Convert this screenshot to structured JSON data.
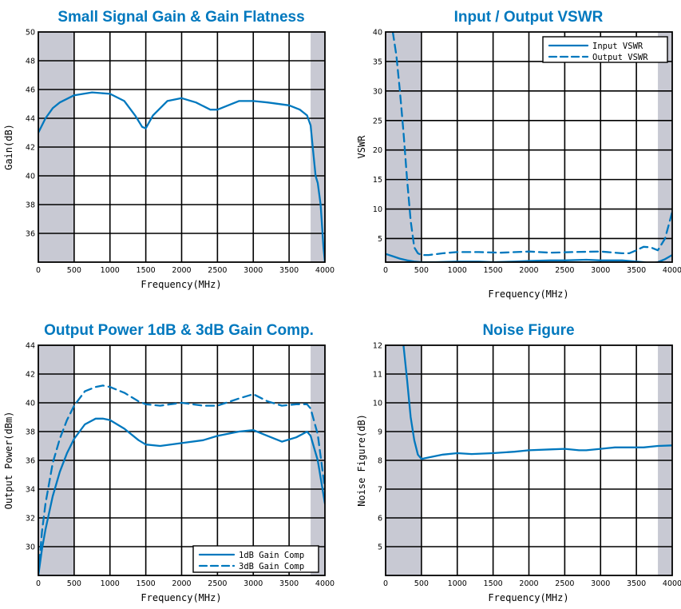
{
  "colors": {
    "series": "#0078be",
    "shade": "#c8c9d3",
    "title": "#0078be"
  },
  "chart_data": [
    {
      "id": "gain",
      "type": "line",
      "title": "Small Signal Gain & Gain Flatness",
      "xlabel": "Frequency(MHz)",
      "ylabel": "Gain(dB)",
      "xlim": [
        0,
        4000
      ],
      "ylim": [
        34,
        50
      ],
      "xticks": [
        0,
        500,
        1000,
        1500,
        2000,
        2500,
        3000,
        3500,
        4000
      ],
      "yticks": [
        36,
        38,
        40,
        42,
        44,
        46,
        48,
        50
      ],
      "grid": true,
      "shaded_x": [
        [
          0,
          500
        ],
        [
          3800,
          4000
        ]
      ],
      "legend": null,
      "series": [
        {
          "style": "solid",
          "x": [
            0,
            100,
            200,
            300,
            500,
            750,
            1000,
            1200,
            1350,
            1450,
            1500,
            1600,
            1800,
            2000,
            2200,
            2400,
            2500,
            2650,
            2800,
            3000,
            3200,
            3500,
            3650,
            3750,
            3800,
            3830,
            3870,
            3900,
            3940,
            3980,
            4000
          ],
          "y": [
            43.0,
            44.0,
            44.7,
            45.1,
            45.6,
            45.8,
            45.7,
            45.2,
            44.2,
            43.4,
            43.3,
            44.2,
            45.2,
            45.4,
            45.1,
            44.6,
            44.6,
            44.9,
            45.2,
            45.2,
            45.1,
            44.9,
            44.6,
            44.2,
            43.5,
            42.0,
            40.0,
            39.5,
            38.0,
            35.0,
            34.0
          ]
        }
      ]
    },
    {
      "id": "vswr",
      "type": "line",
      "title": "Input / Output VSWR",
      "xlabel": "Frequency(MHz)",
      "ylabel": "VSWR",
      "xlim": [
        0,
        4000
      ],
      "ylim": [
        1,
        40
      ],
      "xticks": [
        0,
        500,
        1000,
        1500,
        2000,
        2500,
        3000,
        3500,
        4000
      ],
      "yticks": [
        5,
        10,
        15,
        20,
        25,
        30,
        35,
        40
      ],
      "grid": true,
      "shaded_x": [
        [
          0,
          500
        ],
        [
          3800,
          4000
        ]
      ],
      "legend": "top-right",
      "series": [
        {
          "name": "Input VSWR",
          "style": "solid",
          "x": [
            0,
            100,
            200,
            300,
            400,
            500,
            700,
            1000,
            1300,
            1500,
            1800,
            2000,
            2300,
            2500,
            2800,
            3000,
            3300,
            3500,
            3600,
            3700,
            3800,
            3900,
            4000
          ],
          "y": [
            2.4,
            2.0,
            1.6,
            1.3,
            1.1,
            1.0,
            1.0,
            1.1,
            1.1,
            1.0,
            1.1,
            1.2,
            1.3,
            1.3,
            1.4,
            1.3,
            1.3,
            1.1,
            1.0,
            0.8,
            1.0,
            1.5,
            2.2
          ]
        },
        {
          "name": "Output VSWR",
          "style": "dashed",
          "x": [
            100,
            150,
            200,
            250,
            300,
            350,
            400,
            450,
            500,
            600,
            800,
            1000,
            1300,
            1600,
            2000,
            2300,
            2600,
            3000,
            3300,
            3400,
            3500,
            3600,
            3700,
            3800,
            3900,
            4000
          ],
          "y": [
            40,
            36,
            30,
            23,
            15,
            8,
            3.5,
            2.5,
            2.2,
            2.2,
            2.5,
            2.7,
            2.7,
            2.6,
            2.8,
            2.6,
            2.7,
            2.8,
            2.5,
            2.5,
            3.0,
            3.6,
            3.5,
            3.0,
            5.0,
            9.5
          ]
        }
      ]
    },
    {
      "id": "power",
      "type": "line",
      "title": "Output Power 1dB & 3dB Gain Comp.",
      "xlabel": "Frequency(MHz)",
      "ylabel": "Output Power(dBm)",
      "xlim": [
        0,
        4000
      ],
      "ylim": [
        28,
        44
      ],
      "xticks": [
        0,
        500,
        1000,
        1500,
        2000,
        2500,
        3000,
        3500,
        4000
      ],
      "yticks": [
        30,
        32,
        34,
        36,
        38,
        40,
        42,
        44
      ],
      "grid": true,
      "shaded_x": [
        [
          0,
          500
        ],
        [
          3800,
          4000
        ]
      ],
      "legend": "bottom-right",
      "series": [
        {
          "name": "1dB Gain Comp",
          "style": "solid",
          "x": [
            0,
            50,
            100,
            200,
            300,
            400,
            500,
            650,
            800,
            900,
            1000,
            1200,
            1400,
            1500,
            1700,
            2000,
            2300,
            2500,
            2800,
            3000,
            3200,
            3400,
            3600,
            3750,
            3800,
            3900,
            4000
          ],
          "y": [
            28.0,
            29.8,
            31.2,
            33.5,
            35.2,
            36.5,
            37.5,
            38.5,
            38.9,
            38.9,
            38.8,
            38.2,
            37.4,
            37.1,
            37.0,
            37.2,
            37.4,
            37.7,
            38.0,
            38.1,
            37.7,
            37.3,
            37.6,
            38.0,
            37.7,
            36.0,
            33.0
          ]
        },
        {
          "name": "3dB Gain Comp",
          "style": "dashed",
          "x": [
            0,
            50,
            100,
            200,
            300,
            400,
            500,
            650,
            800,
            900,
            1000,
            1200,
            1400,
            1500,
            1700,
            2000,
            2300,
            2500,
            2800,
            3000,
            3200,
            3400,
            3600,
            3750,
            3800,
            3900,
            4000
          ],
          "y": [
            28.0,
            31.0,
            33.0,
            35.8,
            37.5,
            38.8,
            39.8,
            40.8,
            41.1,
            41.2,
            41.1,
            40.7,
            40.1,
            39.9,
            39.8,
            40.0,
            39.8,
            39.8,
            40.3,
            40.6,
            40.1,
            39.8,
            39.9,
            39.9,
            39.6,
            37.8,
            34.0
          ]
        }
      ]
    },
    {
      "id": "nf",
      "type": "line",
      "title": "Noise Figure",
      "xlabel": "Frequency(MHz)",
      "ylabel": "Noise Figure(dB)",
      "xlim": [
        0,
        4000
      ],
      "ylim": [
        4,
        12
      ],
      "xticks": [
        0,
        500,
        1000,
        1500,
        2000,
        2500,
        3000,
        3500,
        4000
      ],
      "yticks": [
        5,
        6,
        7,
        8,
        9,
        10,
        11,
        12
      ],
      "grid": true,
      "shaded_x": [
        [
          0,
          500
        ],
        [
          3800,
          4000
        ]
      ],
      "legend": null,
      "series": [
        {
          "style": "solid",
          "x": [
            250,
            300,
            350,
            400,
            450,
            500,
            600,
            800,
            1000,
            1200,
            1500,
            1800,
            2000,
            2300,
            2500,
            2700,
            2800,
            3000,
            3200,
            3400,
            3600,
            3800,
            4000
          ],
          "y": [
            12.0,
            10.8,
            9.5,
            8.7,
            8.2,
            8.05,
            8.1,
            8.2,
            8.25,
            8.22,
            8.25,
            8.3,
            8.35,
            8.38,
            8.4,
            8.35,
            8.35,
            8.4,
            8.45,
            8.45,
            8.45,
            8.5,
            8.52
          ]
        }
      ]
    }
  ]
}
